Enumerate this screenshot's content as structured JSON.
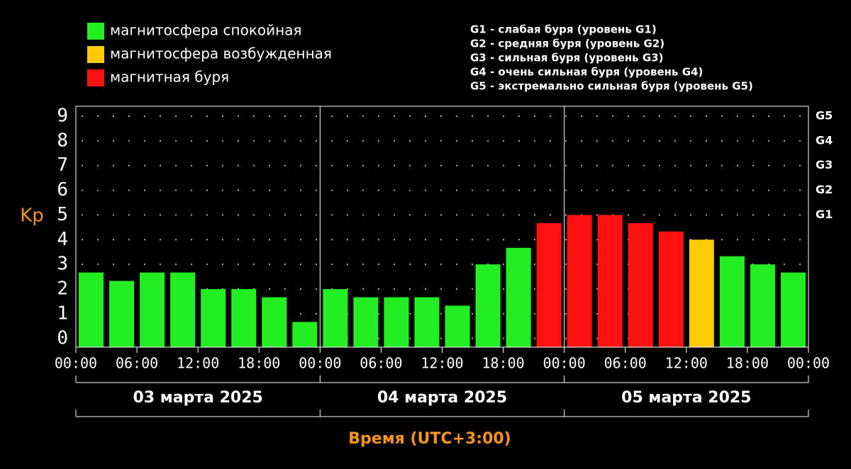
{
  "chart_data": {
    "type": "bar",
    "legend": [
      {
        "name": "магнитосфера спокойная",
        "color": "#22ee22"
      },
      {
        "name": "магнитосфера возбужденная",
        "color": "#ffcc00"
      },
      {
        "name": "магнитная буря",
        "color": "#ff1111"
      }
    ],
    "storm_levels": [
      "G1 - слабая буря (уровень G1)",
      "G2 - средняя буря (уровень G2)",
      "G3 - сильная буря (уровень G3)",
      "G4 - очень сильная буря (уровень G4)",
      "G5 - экстремально сильная буря (уровень G5)"
    ],
    "ylabel": "Kp",
    "xlabel": "Время (UTC+3:00)",
    "x_groups": [
      "03 марта 2025",
      "04 марта 2025",
      "05 марта 2025"
    ],
    "x": [
      0,
      3,
      6,
      9,
      12,
      15,
      18,
      21,
      24,
      27,
      30,
      33,
      36,
      39,
      42,
      45,
      48,
      51,
      54,
      57,
      60,
      63,
      66,
      69
    ],
    "values": [
      2.67,
      2.33,
      2.67,
      2.67,
      2.0,
      2.0,
      1.67,
      0.67,
      2.0,
      1.67,
      1.67,
      1.67,
      1.33,
      3.0,
      3.67,
      4.67,
      5.0,
      5.0,
      4.67,
      4.33,
      4.0,
      3.33,
      3.0,
      2.67
    ],
    "colors": [
      "#22ee22",
      "#22ee22",
      "#22ee22",
      "#22ee22",
      "#22ee22",
      "#22ee22",
      "#22ee22",
      "#22ee22",
      "#22ee22",
      "#22ee22",
      "#22ee22",
      "#22ee22",
      "#22ee22",
      "#22ee22",
      "#22ee22",
      "#ff1111",
      "#ff1111",
      "#ff1111",
      "#ff1111",
      "#ff1111",
      "#ffcc00",
      "#22ee22",
      "#22ee22",
      "#22ee22"
    ],
    "xlim": [
      0,
      72
    ],
    "xticks": [
      {
        "value": 0,
        "label": "00:00"
      },
      {
        "value": 6,
        "label": "06:00"
      },
      {
        "value": 12,
        "label": "12:00"
      },
      {
        "value": 18,
        "label": "18:00"
      },
      {
        "value": 24,
        "label": "00:00"
      },
      {
        "value": 30,
        "label": "06:00"
      },
      {
        "value": 36,
        "label": "12:00"
      },
      {
        "value": 42,
        "label": "18:00"
      },
      {
        "value": 48,
        "label": "00:00"
      },
      {
        "value": 54,
        "label": "06:00"
      },
      {
        "value": 60,
        "label": "12:00"
      },
      {
        "value": 66,
        "label": "18:00"
      },
      {
        "value": 72,
        "label": "00:00"
      }
    ],
    "ylim": [
      -0.35,
      9.4
    ],
    "yticks": [
      0,
      1,
      2,
      3,
      4,
      5,
      6,
      7,
      8,
      9
    ],
    "y2lim": [
      -0.35,
      9.4
    ],
    "y2ticks": [
      {
        "value": 5,
        "label": "G1"
      },
      {
        "value": 6,
        "label": "G2"
      },
      {
        "value": 7,
        "label": "G3"
      },
      {
        "value": 8,
        "label": "G4"
      },
      {
        "value": 9,
        "label": "G5"
      }
    ],
    "grid": true
  }
}
